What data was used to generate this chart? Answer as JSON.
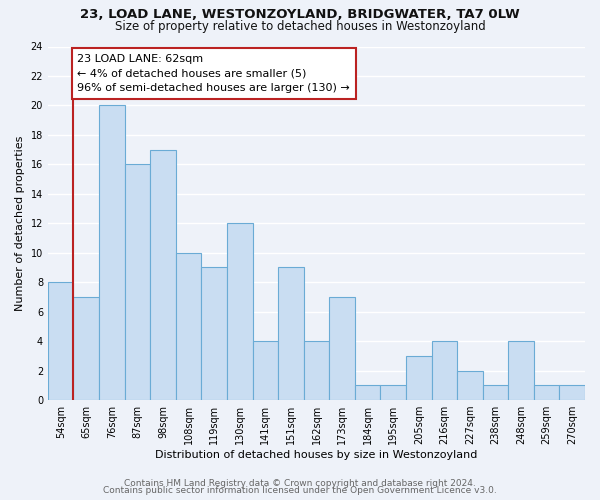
{
  "title": "23, LOAD LANE, WESTONZOYLAND, BRIDGWATER, TA7 0LW",
  "subtitle": "Size of property relative to detached houses in Westonzoyland",
  "xlabel": "Distribution of detached houses by size in Westonzoyland",
  "ylabel": "Number of detached properties",
  "bins": [
    "54sqm",
    "65sqm",
    "76sqm",
    "87sqm",
    "98sqm",
    "108sqm",
    "119sqm",
    "130sqm",
    "141sqm",
    "151sqm",
    "162sqm",
    "173sqm",
    "184sqm",
    "195sqm",
    "205sqm",
    "216sqm",
    "227sqm",
    "238sqm",
    "248sqm",
    "259sqm",
    "270sqm"
  ],
  "values": [
    8,
    7,
    20,
    16,
    17,
    10,
    9,
    12,
    4,
    9,
    4,
    7,
    1,
    1,
    3,
    4,
    2,
    1,
    4,
    1,
    1
  ],
  "bar_color": "#c9ddf2",
  "bar_edge_color": "#6aabd5",
  "highlight_line_color": "#bb2222",
  "annotation_title": "23 LOAD LANE: 62sqm",
  "annotation_line1": "← 4% of detached houses are smaller (5)",
  "annotation_line2": "96% of semi-detached houses are larger (130) →",
  "annotation_box_color": "#ffffff",
  "annotation_box_edge_color": "#bb2222",
  "ylim": [
    0,
    24
  ],
  "yticks": [
    0,
    2,
    4,
    6,
    8,
    10,
    12,
    14,
    16,
    18,
    20,
    22,
    24
  ],
  "footer1": "Contains HM Land Registry data © Crown copyright and database right 2024.",
  "footer2": "Contains public sector information licensed under the Open Government Licence v3.0.",
  "bg_color": "#eef2f9",
  "plot_bg_color": "#eef2f9",
  "grid_color": "#ffffff",
  "title_fontsize": 9.5,
  "subtitle_fontsize": 8.5,
  "axis_label_fontsize": 8,
  "tick_fontsize": 7,
  "footer_fontsize": 6.5,
  "annotation_fontsize": 8
}
